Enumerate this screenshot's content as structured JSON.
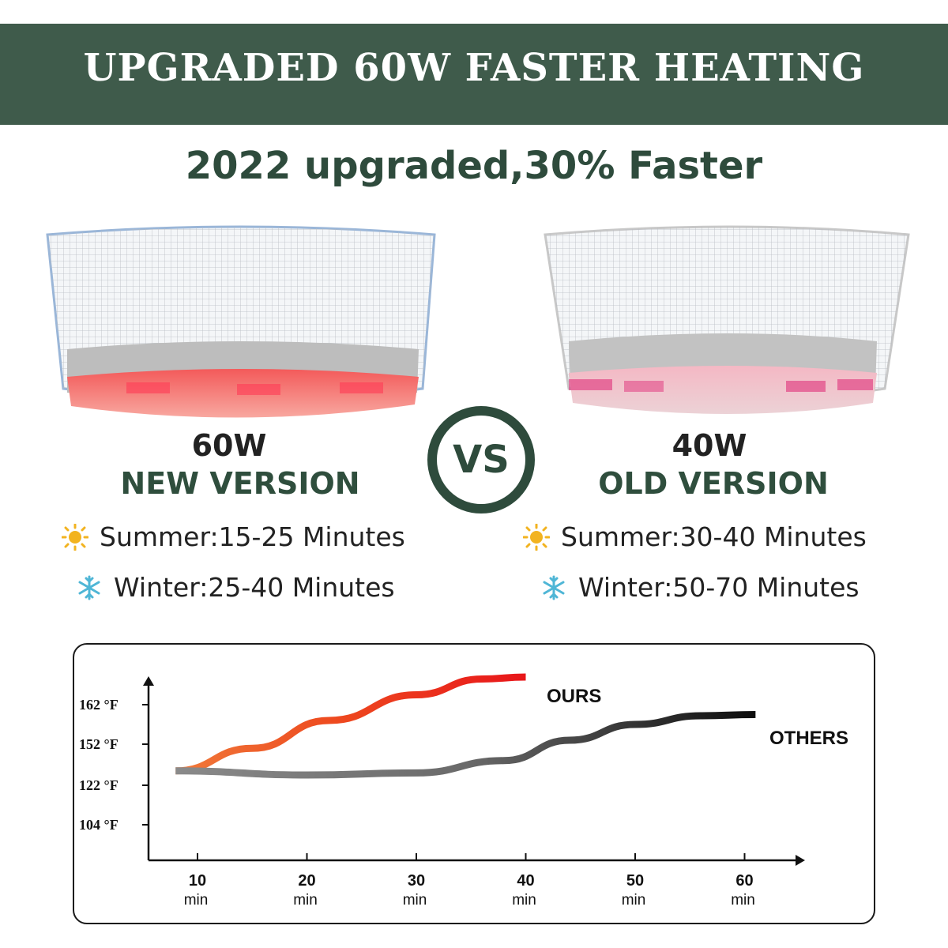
{
  "banner": {
    "title": "UPGRADED 60W FASTER HEATING",
    "color": "#3f5b4b"
  },
  "subtitle": "2022 upgraded,30% Faster",
  "left": {
    "watt": "60W",
    "version": "NEW VERSION",
    "summer": "Summer:15-25 Minutes",
    "winter": "Winter:25-40 Minutes"
  },
  "right": {
    "watt": "40W",
    "version": "OLD VERSION",
    "summer": "Summer:30-40 Minutes",
    "winter": "Winter:50-70 Minutes"
  },
  "vs_label": "VS",
  "icons": {
    "summer": "sun-icon",
    "winter": "snowflake-icon"
  },
  "colors": {
    "accent": "#2e4b3c",
    "ours": "#e8261a",
    "others": "#222222",
    "sun": "#f2b320",
    "snow": "#4fb6d6"
  },
  "chart_data": {
    "type": "line",
    "x_ticks": [
      "10",
      "20",
      "30",
      "40",
      "50",
      "60"
    ],
    "x_unit": "min",
    "y_ticks": [
      "104 °F",
      "122 °F",
      "152 °F",
      "162 °F"
    ],
    "series": [
      {
        "name": "OURS",
        "points": [
          [
            8,
            1.35
          ],
          [
            15,
            1.9
          ],
          [
            22,
            2.6
          ],
          [
            30,
            3.25
          ],
          [
            36,
            3.65
          ],
          [
            40,
            3.7
          ]
        ]
      },
      {
        "name": "OTHERS",
        "points": [
          [
            8,
            1.35
          ],
          [
            20,
            1.25
          ],
          [
            30,
            1.3
          ],
          [
            38,
            1.6
          ],
          [
            44,
            2.1
          ],
          [
            50,
            2.5
          ],
          [
            56,
            2.72
          ],
          [
            61,
            2.75
          ]
        ]
      }
    ]
  }
}
